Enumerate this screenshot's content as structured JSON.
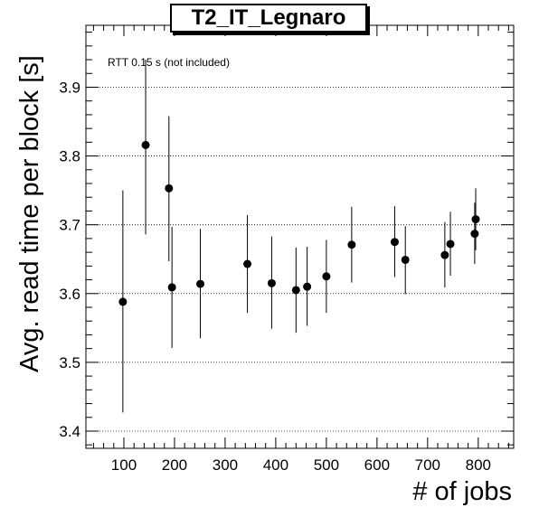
{
  "chart_data": {
    "type": "scatter",
    "title": "T2_IT_Legnaro",
    "xlabel": "# of jobs",
    "ylabel": "Avg. read time per block [s]",
    "annotation": "RTT 0.15 s (not included)",
    "xlim": [
      25,
      870
    ],
    "ylim": [
      3.375,
      3.99
    ],
    "x_ticks": [
      100,
      200,
      300,
      400,
      500,
      600,
      700,
      800
    ],
    "y_ticks": [
      3.4,
      3.5,
      3.6,
      3.7,
      3.8,
      3.9
    ],
    "grid": "horizontal dotted",
    "marker": "filled circle",
    "color": "#000000",
    "points": [
      {
        "x": 98,
        "y": 3.588,
        "err_low": 3.427,
        "err_high": 3.75
      },
      {
        "x": 143,
        "y": 3.816,
        "err_low": 3.686,
        "err_high": 3.94
      },
      {
        "x": 189,
        "y": 3.753,
        "err_low": 3.647,
        "err_high": 3.858
      },
      {
        "x": 195,
        "y": 3.609,
        "err_low": 3.521,
        "err_high": 3.697
      },
      {
        "x": 251,
        "y": 3.614,
        "err_low": 3.535,
        "err_high": 3.694
      },
      {
        "x": 344,
        "y": 3.643,
        "err_low": 3.572,
        "err_high": 3.714
      },
      {
        "x": 392,
        "y": 3.615,
        "err_low": 3.549,
        "err_high": 3.683
      },
      {
        "x": 440,
        "y": 3.605,
        "err_low": 3.543,
        "err_high": 3.667
      },
      {
        "x": 462,
        "y": 3.61,
        "err_low": 3.553,
        "err_high": 3.668
      },
      {
        "x": 500,
        "y": 3.625,
        "err_low": 3.572,
        "err_high": 3.678
      },
      {
        "x": 550,
        "y": 3.671,
        "err_low": 3.616,
        "err_high": 3.726
      },
      {
        "x": 635,
        "y": 3.675,
        "err_low": 3.624,
        "err_high": 3.727
      },
      {
        "x": 656,
        "y": 3.649,
        "err_low": 3.599,
        "err_high": 3.698
      },
      {
        "x": 734,
        "y": 3.656,
        "err_low": 3.609,
        "err_high": 3.704
      },
      {
        "x": 745,
        "y": 3.672,
        "err_low": 3.626,
        "err_high": 3.719
      },
      {
        "x": 793,
        "y": 3.687,
        "err_low": 3.643,
        "err_high": 3.732
      },
      {
        "x": 795,
        "y": 3.708,
        "err_low": 3.663,
        "err_high": 3.753
      }
    ]
  }
}
